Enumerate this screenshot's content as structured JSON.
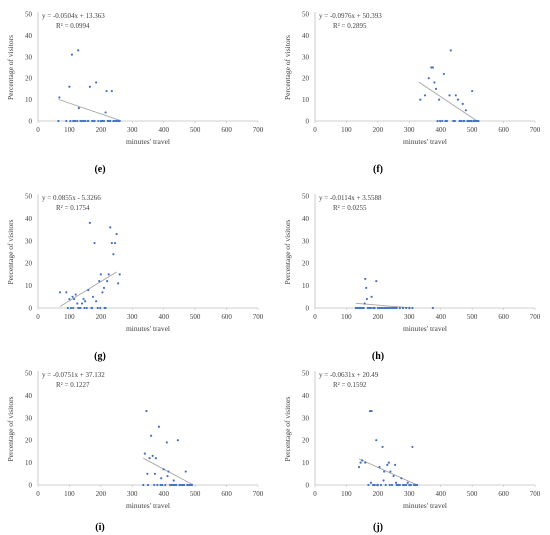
{
  "colors": {
    "point": "#4472c4",
    "trendline": "#a6a6a6",
    "axis": "#bfbfbf",
    "text": "#404040"
  },
  "chart_data": [
    {
      "type": "scatter",
      "panel_label": "(e)",
      "equation": "y = -0.0504x + 13.363",
      "r_squared": "R² = 0.0994",
      "xlabel": "minutes' travel",
      "ylabel": "Percentage of visitors",
      "xlim": [
        0,
        700
      ],
      "ylim": [
        0,
        50
      ],
      "xticks": [
        "0",
        "100",
        "200",
        "300",
        "400",
        "500",
        "600",
        "700"
      ],
      "yticks": [
        "0",
        "10",
        "20",
        "30",
        "40",
        "50"
      ],
      "trendline": {
        "x": [
          65,
          260
        ],
        "y": [
          10.1,
          0.3
        ]
      },
      "points": [
        [
          65,
          0
        ],
        [
          68,
          11
        ],
        [
          90,
          0
        ],
        [
          100,
          16
        ],
        [
          103,
          0
        ],
        [
          108,
          31
        ],
        [
          115,
          0
        ],
        [
          118,
          0
        ],
        [
          125,
          0
        ],
        [
          128,
          33
        ],
        [
          130,
          6
        ],
        [
          140,
          0
        ],
        [
          150,
          0
        ],
        [
          158,
          0
        ],
        [
          165,
          16
        ],
        [
          172,
          0
        ],
        [
          180,
          0
        ],
        [
          185,
          18
        ],
        [
          192,
          0
        ],
        [
          200,
          0
        ],
        [
          205,
          0
        ],
        [
          210,
          0
        ],
        [
          215,
          4
        ],
        [
          218,
          14
        ],
        [
          222,
          0
        ],
        [
          225,
          0
        ],
        [
          230,
          0
        ],
        [
          235,
          14
        ],
        [
          240,
          0
        ],
        [
          245,
          0
        ],
        [
          250,
          0
        ],
        [
          255,
          0
        ],
        [
          260,
          0
        ],
        [
          112,
          0
        ],
        [
          135,
          0
        ],
        [
          145,
          0
        ],
        [
          160,
          0
        ],
        [
          178,
          0
        ]
      ]
    },
    {
      "type": "scatter",
      "panel_label": "(f)",
      "equation": "y = -0.0976x + 50.393",
      "r_squared": "R² = 0.2895",
      "xlabel": "minutes' travel",
      "ylabel": "Percentage of visitors",
      "xlim": [
        0,
        700
      ],
      "ylim": [
        0,
        50
      ],
      "xticks": [
        "0",
        "100",
        "200",
        "300",
        "400",
        "500",
        "600",
        "700"
      ],
      "yticks": [
        "0",
        "10",
        "20",
        "30",
        "40",
        "50"
      ],
      "trendline": {
        "x": [
          330,
          520
        ],
        "y": [
          18.2,
          -0.4
        ]
      },
      "points": [
        [
          335,
          10
        ],
        [
          350,
          12
        ],
        [
          362,
          20
        ],
        [
          370,
          25
        ],
        [
          375,
          25
        ],
        [
          380,
          18
        ],
        [
          385,
          15
        ],
        [
          390,
          0
        ],
        [
          398,
          0
        ],
        [
          405,
          0
        ],
        [
          410,
          22
        ],
        [
          415,
          0
        ],
        [
          420,
          0
        ],
        [
          428,
          12
        ],
        [
          432,
          33
        ],
        [
          440,
          0
        ],
        [
          448,
          12
        ],
        [
          455,
          10
        ],
        [
          460,
          0
        ],
        [
          465,
          0
        ],
        [
          470,
          8
        ],
        [
          475,
          0
        ],
        [
          480,
          5
        ],
        [
          485,
          0
        ],
        [
          490,
          0
        ],
        [
          495,
          0
        ],
        [
          500,
          14
        ],
        [
          505,
          0
        ],
        [
          510,
          0
        ],
        [
          515,
          0
        ],
        [
          520,
          0
        ],
        [
          395,
          10
        ],
        [
          445,
          0
        ],
        [
          472,
          0
        ],
        [
          488,
          0
        ],
        [
          498,
          0
        ],
        [
          508,
          0
        ]
      ]
    },
    {
      "type": "scatter",
      "panel_label": "(g)",
      "equation": "y = 0.0855x - 5.3266",
      "r_squared": "R² = 0.1754",
      "xlabel": "minutes' travel",
      "ylabel": "Percentage of visitors",
      "xlim": [
        0,
        700
      ],
      "ylim": [
        0,
        50
      ],
      "xticks": [
        "0",
        "100",
        "200",
        "300",
        "400",
        "500",
        "600",
        "700"
      ],
      "yticks": [
        "0",
        "10",
        "20",
        "30",
        "40",
        "50"
      ],
      "trendline": {
        "x": [
          70,
          250
        ],
        "y": [
          0.66,
          16.05
        ]
      },
      "points": [
        [
          70,
          7
        ],
        [
          90,
          7
        ],
        [
          100,
          4
        ],
        [
          105,
          0
        ],
        [
          110,
          5
        ],
        [
          115,
          4
        ],
        [
          120,
          6
        ],
        [
          125,
          2
        ],
        [
          130,
          0
        ],
        [
          135,
          0
        ],
        [
          140,
          2
        ],
        [
          145,
          4
        ],
        [
          150,
          3
        ],
        [
          155,
          0
        ],
        [
          160,
          8
        ],
        [
          165,
          38
        ],
        [
          170,
          0
        ],
        [
          175,
          5
        ],
        [
          180,
          29
        ],
        [
          185,
          3
        ],
        [
          190,
          0
        ],
        [
          195,
          12
        ],
        [
          200,
          15
        ],
        [
          205,
          7
        ],
        [
          210,
          9
        ],
        [
          215,
          0
        ],
        [
          220,
          12
        ],
        [
          225,
          15
        ],
        [
          230,
          36
        ],
        [
          235,
          29
        ],
        [
          240,
          24
        ],
        [
          245,
          29
        ],
        [
          250,
          33
        ],
        [
          255,
          11
        ],
        [
          260,
          15
        ],
        [
          95,
          0
        ],
        [
          112,
          0
        ],
        [
          128,
          0
        ],
        [
          148,
          0
        ],
        [
          172,
          0
        ],
        [
          198,
          0
        ],
        [
          212,
          0
        ]
      ]
    },
    {
      "type": "scatter",
      "panel_label": "(h)",
      "equation": "y = -0.0114x + 3.5588",
      "r_squared": "R² = 0.0255",
      "xlabel": "minutes' travel",
      "ylabel": "Percentage of visitors",
      "xlim": [
        0,
        700
      ],
      "ylim": [
        0,
        50
      ],
      "xticks": [
        "0",
        "100",
        "200",
        "300",
        "400",
        "500",
        "600",
        "700"
      ],
      "yticks": [
        "0",
        "10",
        "20",
        "30",
        "40",
        "50"
      ],
      "trendline": {
        "x": [
          130,
          310
        ],
        "y": [
          2.08,
          0.02
        ]
      },
      "points": [
        [
          130,
          0
        ],
        [
          135,
          0
        ],
        [
          140,
          0
        ],
        [
          145,
          0
        ],
        [
          150,
          0
        ],
        [
          155,
          0
        ],
        [
          158,
          2
        ],
        [
          160,
          13
        ],
        [
          163,
          9
        ],
        [
          165,
          4
        ],
        [
          170,
          0
        ],
        [
          175,
          0
        ],
        [
          180,
          5
        ],
        [
          185,
          0
        ],
        [
          190,
          0
        ],
        [
          195,
          12
        ],
        [
          200,
          0
        ],
        [
          205,
          0
        ],
        [
          210,
          0
        ],
        [
          215,
          0
        ],
        [
          220,
          0
        ],
        [
          225,
          0
        ],
        [
          230,
          0
        ],
        [
          235,
          0
        ],
        [
          240,
          0
        ],
        [
          245,
          0
        ],
        [
          250,
          0
        ],
        [
          255,
          0
        ],
        [
          260,
          0
        ],
        [
          270,
          0
        ],
        [
          280,
          0
        ],
        [
          290,
          0
        ],
        [
          300,
          0
        ],
        [
          310,
          0
        ],
        [
          375,
          0
        ],
        [
          142,
          0
        ],
        [
          152,
          0
        ],
        [
          168,
          0
        ],
        [
          178,
          0
        ],
        [
          188,
          0
        ]
      ]
    },
    {
      "type": "scatter",
      "panel_label": "(i)",
      "equation": "y = -0.0751x + 37.132",
      "r_squared": "R² = 0.1227",
      "xlabel": "minutes' travel",
      "ylabel": "Percentage of visitors",
      "xlim": [
        0,
        700
      ],
      "ylim": [
        0,
        50
      ],
      "xticks": [
        "0",
        "100",
        "200",
        "300",
        "400",
        "500",
        "600",
        "700"
      ],
      "yticks": [
        "0",
        "10",
        "20",
        "30",
        "40",
        "50"
      ],
      "trendline": {
        "x": [
          335,
          490
        ],
        "y": [
          11.97,
          0.33
        ]
      },
      "points": [
        [
          335,
          0
        ],
        [
          340,
          14
        ],
        [
          345,
          33
        ],
        [
          350,
          0
        ],
        [
          355,
          12
        ],
        [
          360,
          22
        ],
        [
          365,
          13
        ],
        [
          370,
          0
        ],
        [
          375,
          12
        ],
        [
          380,
          0
        ],
        [
          385,
          26
        ],
        [
          390,
          0
        ],
        [
          395,
          0
        ],
        [
          400,
          7
        ],
        [
          405,
          0
        ],
        [
          410,
          19
        ],
        [
          415,
          6
        ],
        [
          420,
          0
        ],
        [
          425,
          0
        ],
        [
          430,
          0
        ],
        [
          435,
          0
        ],
        [
          440,
          0
        ],
        [
          445,
          20
        ],
        [
          450,
          0
        ],
        [
          455,
          0
        ],
        [
          460,
          0
        ],
        [
          465,
          0
        ],
        [
          470,
          6
        ],
        [
          475,
          0
        ],
        [
          480,
          0
        ],
        [
          485,
          0
        ],
        [
          490,
          0
        ],
        [
          348,
          5
        ],
        [
          372,
          5
        ],
        [
          392,
          3
        ],
        [
          412,
          4
        ],
        [
          432,
          2
        ]
      ]
    },
    {
      "type": "scatter",
      "panel_label": "(j)",
      "equation": "y = -0.0631x + 20.49",
      "r_squared": "R² = 0.1592",
      "xlabel": "minutes' travel",
      "ylabel": "Percentage of visitors",
      "xlim": [
        0,
        700
      ],
      "ylim": [
        0,
        50
      ],
      "xticks": [
        "0",
        "100",
        "200",
        "300",
        "400",
        "500",
        "600",
        "700"
      ],
      "yticks": [
        "0",
        "10",
        "20",
        "30",
        "40",
        "50"
      ],
      "trendline": {
        "x": [
          140,
          320
        ],
        "y": [
          11.66,
          0.3
        ]
      },
      "points": [
        [
          140,
          8
        ],
        [
          145,
          10
        ],
        [
          150,
          11
        ],
        [
          160,
          10
        ],
        [
          170,
          0
        ],
        [
          175,
          33
        ],
        [
          180,
          33
        ],
        [
          185,
          0
        ],
        [
          190,
          0
        ],
        [
          195,
          20
        ],
        [
          200,
          0
        ],
        [
          205,
          8
        ],
        [
          210,
          0
        ],
        [
          215,
          17
        ],
        [
          220,
          6
        ],
        [
          225,
          0
        ],
        [
          230,
          9
        ],
        [
          235,
          10
        ],
        [
          240,
          6
        ],
        [
          245,
          0
        ],
        [
          250,
          4
        ],
        [
          255,
          9
        ],
        [
          260,
          0
        ],
        [
          265,
          0
        ],
        [
          270,
          0
        ],
        [
          275,
          3
        ],
        [
          280,
          0
        ],
        [
          285,
          0
        ],
        [
          290,
          0
        ],
        [
          295,
          1
        ],
        [
          300,
          0
        ],
        [
          305,
          0
        ],
        [
          310,
          17
        ],
        [
          315,
          0
        ],
        [
          320,
          0
        ],
        [
          325,
          0
        ],
        [
          178,
          1
        ],
        [
          198,
          0
        ],
        [
          218,
          2
        ],
        [
          238,
          0
        ],
        [
          258,
          1
        ]
      ]
    }
  ]
}
